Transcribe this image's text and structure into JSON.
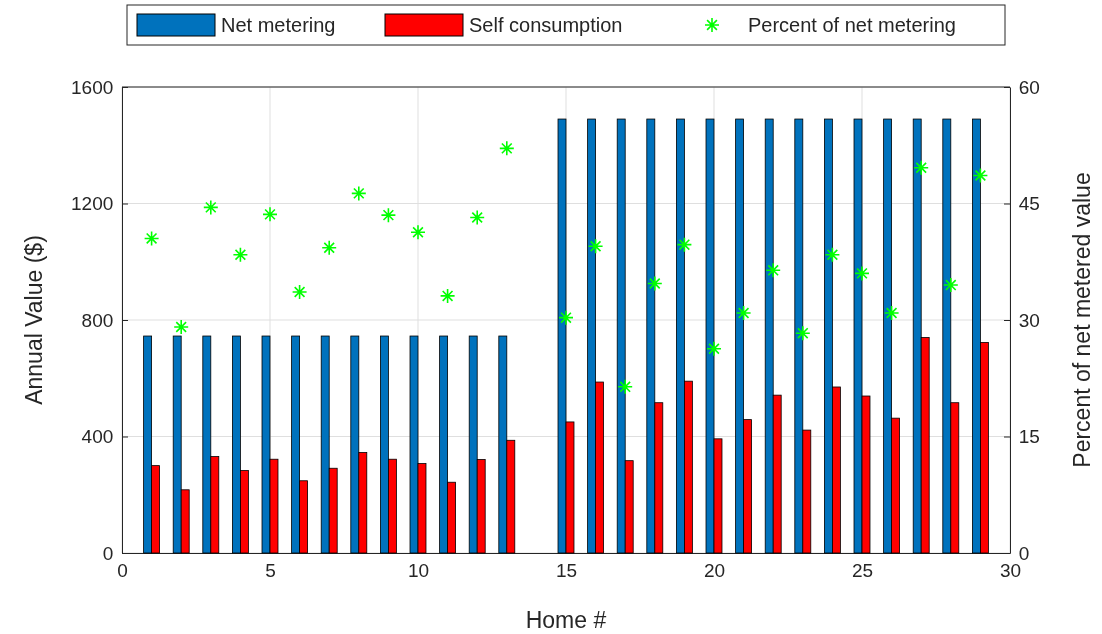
{
  "chart_data": {
    "type": "bar",
    "xlabel": "Home #",
    "ylabel": "Annual Value ($)",
    "y2label": "Percent of net metered value",
    "x": [
      1,
      2,
      3,
      4,
      5,
      6,
      7,
      8,
      9,
      10,
      11,
      12,
      13,
      15,
      16,
      17,
      18,
      19,
      20,
      21,
      22,
      23,
      24,
      25,
      26,
      27,
      28,
      29
    ],
    "xlim": [
      0,
      30
    ],
    "xticks": [
      0,
      5,
      10,
      15,
      20,
      25,
      30
    ],
    "ylim": [
      0,
      1600
    ],
    "yticks": [
      0,
      400,
      800,
      1200,
      1600
    ],
    "y2lim": [
      0,
      60
    ],
    "y2ticks": [
      0,
      15,
      30,
      45,
      60
    ],
    "grid": true,
    "legend": "top",
    "marker": "cross",
    "series": [
      {
        "name": "Net metering",
        "color": "#0072bd",
        "values": [
          745,
          745,
          745,
          745,
          745,
          745,
          745,
          745,
          745,
          745,
          745,
          745,
          745,
          1490,
          1490,
          1490,
          1490,
          1490,
          1490,
          1490,
          1490,
          1490,
          1490,
          1490,
          1490,
          1490,
          1490,
          1490
        ]
      },
      {
        "name": "Self consumption",
        "color": "#ff0000",
        "values": [
          300,
          217,
          331,
          283,
          322,
          248,
          291,
          345,
          322,
          307,
          243,
          321,
          387,
          450,
          587,
          317,
          516,
          590,
          392,
          458,
          542,
          422,
          570,
          539,
          463,
          740,
          516,
          723
        ]
      },
      {
        "name": "Percent of net metering",
        "type": "scatter",
        "axis": "y2",
        "color": "#00ff00",
        "values": [
          40.5,
          29.1,
          44.5,
          38.4,
          43.6,
          33.6,
          39.3,
          46.3,
          43.5,
          41.3,
          33.1,
          43.2,
          52.1,
          30.3,
          39.5,
          21.4,
          34.7,
          39.7,
          26.3,
          30.9,
          36.4,
          28.3,
          38.4,
          36.0,
          30.9,
          49.6,
          34.5,
          48.6
        ]
      }
    ]
  }
}
